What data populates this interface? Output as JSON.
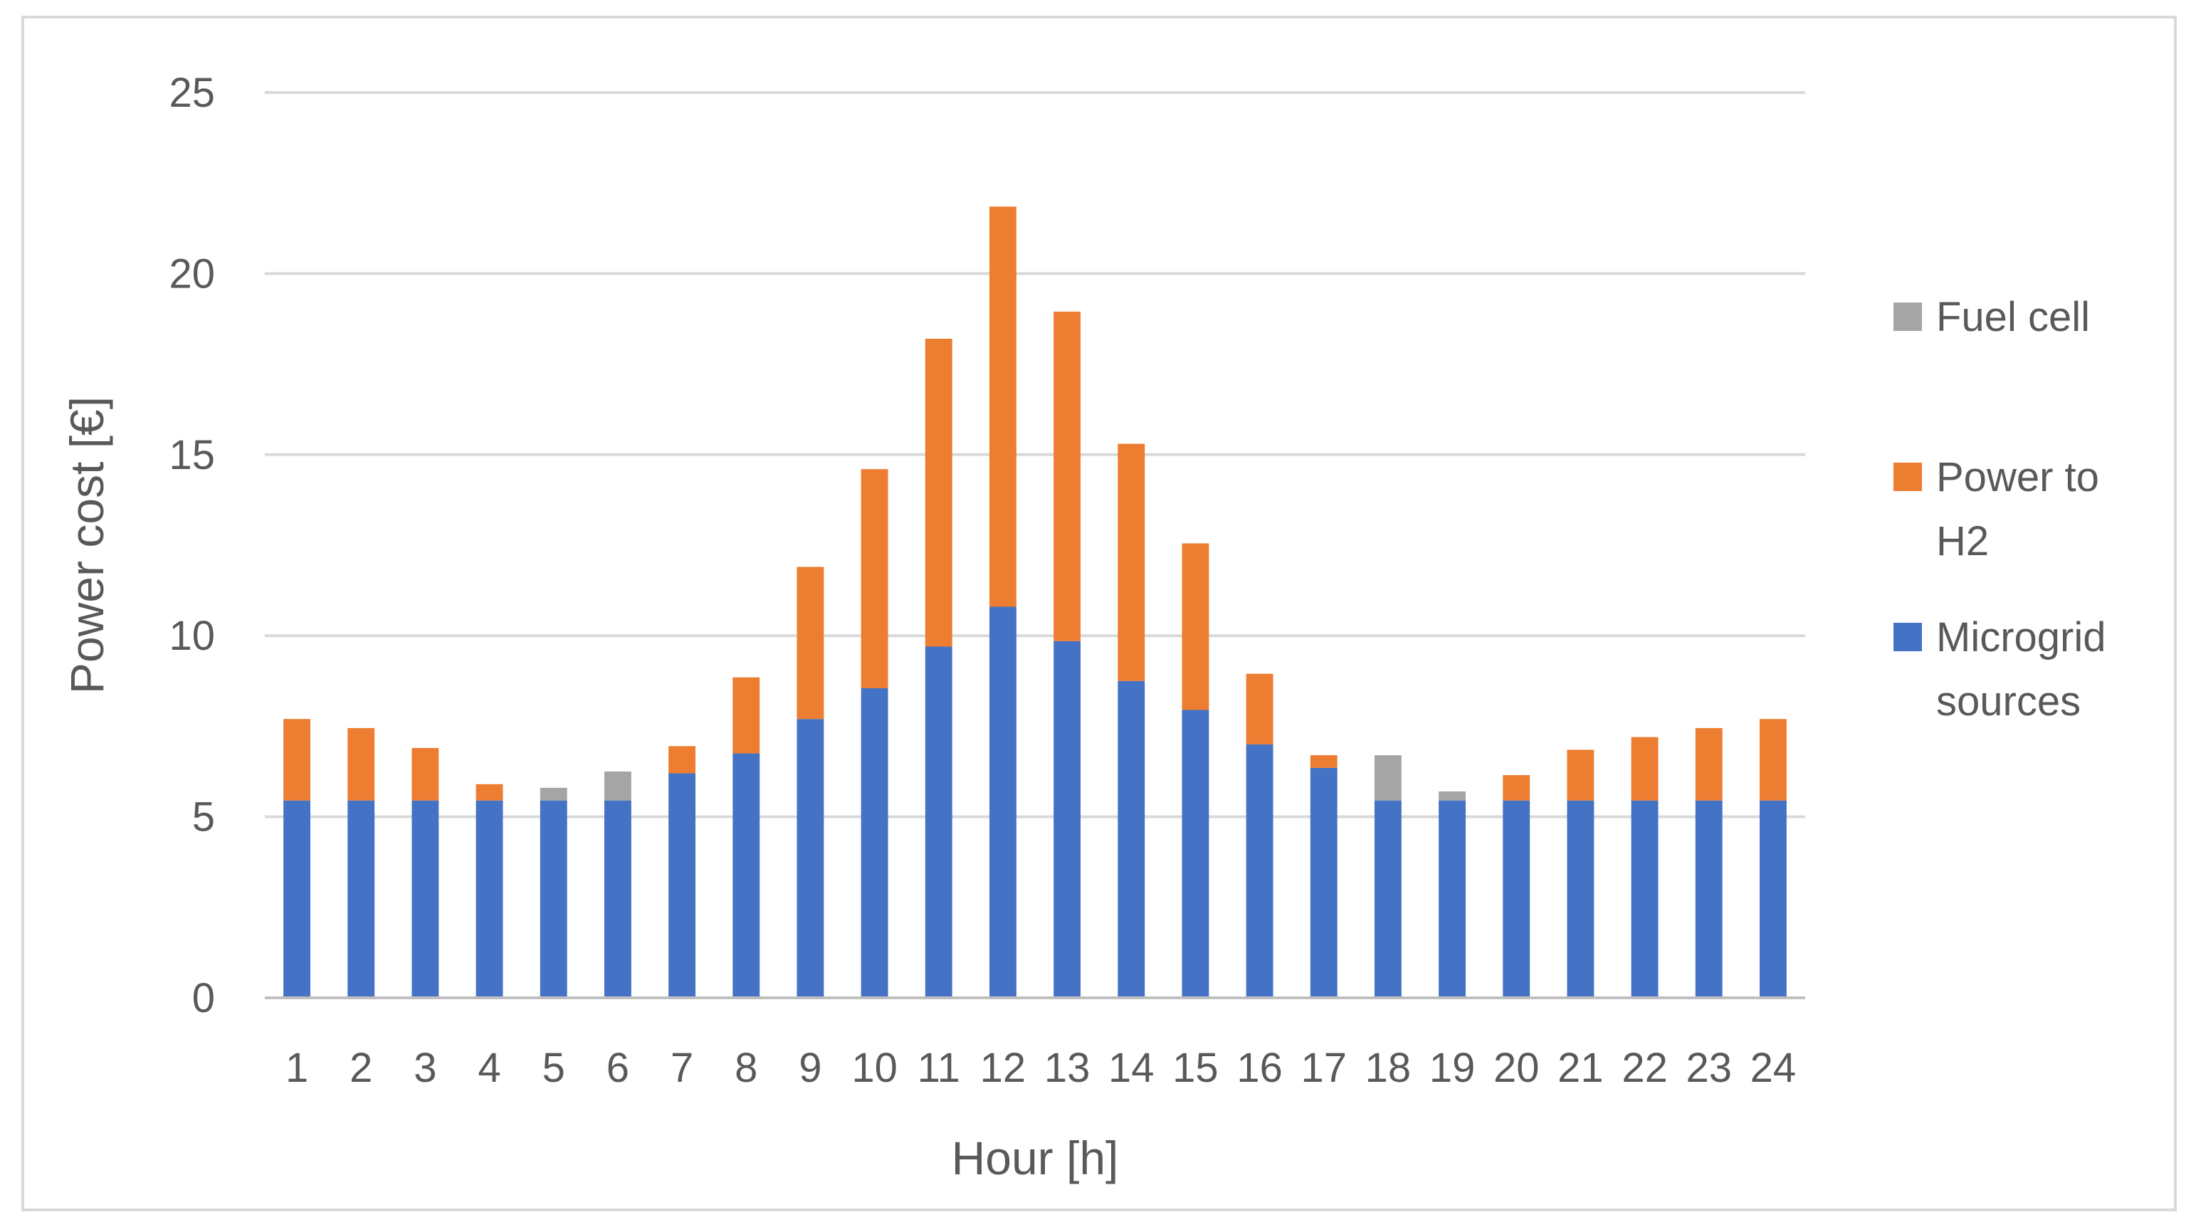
{
  "chart_data": {
    "type": "bar",
    "stacked": true,
    "title": "",
    "xlabel": "Hour [h]",
    "ylabel": "Power cost [€]",
    "ylim": [
      0,
      25
    ],
    "yticks": [
      0,
      5,
      10,
      15,
      20,
      25
    ],
    "grid": true,
    "legend_position": "right",
    "categories": [
      "1",
      "2",
      "3",
      "4",
      "5",
      "6",
      "7",
      "8",
      "9",
      "10",
      "11",
      "12",
      "13",
      "14",
      "15",
      "16",
      "17",
      "18",
      "19",
      "20",
      "21",
      "22",
      "23",
      "24"
    ],
    "series": [
      {
        "name": "Microgrid sources",
        "color": "#4472C4",
        "legend_lines": [
          "Microgrid",
          "sources"
        ],
        "values": [
          5.45,
          5.45,
          5.45,
          5.45,
          5.45,
          5.45,
          6.2,
          6.75,
          7.7,
          8.55,
          9.7,
          10.8,
          9.85,
          8.75,
          7.95,
          7.0,
          6.35,
          5.45,
          5.45,
          5.45,
          5.45,
          5.45,
          5.45,
          5.45
        ]
      },
      {
        "name": "Power to H2",
        "color": "#ED7D31",
        "legend_lines": [
          "Power to",
          "H2"
        ],
        "values": [
          2.25,
          2.0,
          1.45,
          0.45,
          0.0,
          0.0,
          0.75,
          2.1,
          4.2,
          6.05,
          8.5,
          11.05,
          9.1,
          6.55,
          4.6,
          1.95,
          0.35,
          0.0,
          0.0,
          0.7,
          1.4,
          1.75,
          2.0,
          2.25
        ]
      },
      {
        "name": "Fuel cell",
        "color": "#A5A5A5",
        "legend_lines": [
          "Fuel cell"
        ],
        "values": [
          0.0,
          0.0,
          0.0,
          0.0,
          0.35,
          0.8,
          0.0,
          0.0,
          0.0,
          0.0,
          0.0,
          0.0,
          0.0,
          0.0,
          0.0,
          0.0,
          0.0,
          1.25,
          0.25,
          0.0,
          0.0,
          0.0,
          0.0,
          0.0
        ]
      }
    ],
    "legend_order": [
      "Fuel cell",
      "Power to H2",
      "Microgrid sources"
    ],
    "colors": {
      "grid": "#D9D9D9",
      "axis": "#BFBFBF",
      "border": "#D9D9D9",
      "text": "#595959"
    }
  }
}
